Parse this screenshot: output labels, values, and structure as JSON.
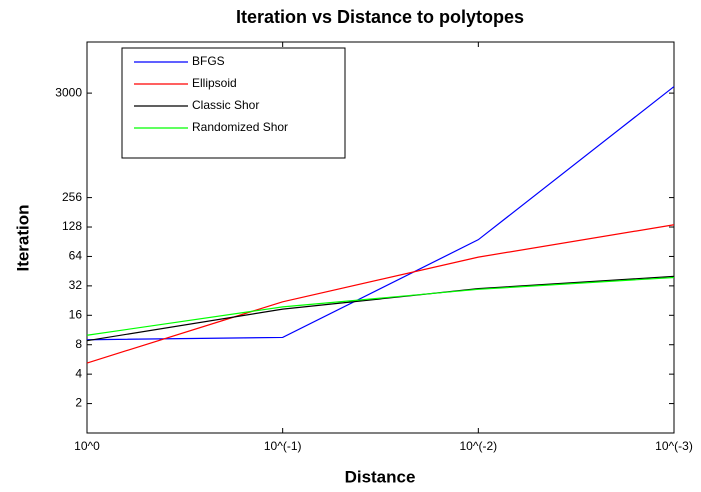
{
  "chart_data": {
    "type": "line",
    "title": "Iteration vs Distance to polytopes",
    "x_label": "Distance",
    "y_label": "Iteration",
    "categories": [
      "10^0",
      "10^(-1)",
      "10^(-2)",
      "10^(-3)"
    ],
    "series": [
      {
        "name": "BFGS",
        "color": "#0000ff",
        "values": [
          9,
          9.5,
          95,
          3500
        ]
      },
      {
        "name": "Ellipsoid",
        "color": "#ff0000",
        "values": [
          5.2,
          22,
          63,
          135
        ]
      },
      {
        "name": "Classic Shor",
        "color": "#000000",
        "values": [
          8.8,
          18.5,
          30,
          40
        ]
      },
      {
        "name": "Randomized Shor",
        "color": "#00ff00",
        "values": [
          10,
          19.5,
          29.5,
          39
        ]
      }
    ],
    "ylim": [
      1,
      10000
    ],
    "yscale": "log",
    "yticks": [
      2,
      4,
      8,
      16,
      32,
      64,
      128,
      256,
      3000
    ],
    "legend": "upper left",
    "grid": false
  }
}
